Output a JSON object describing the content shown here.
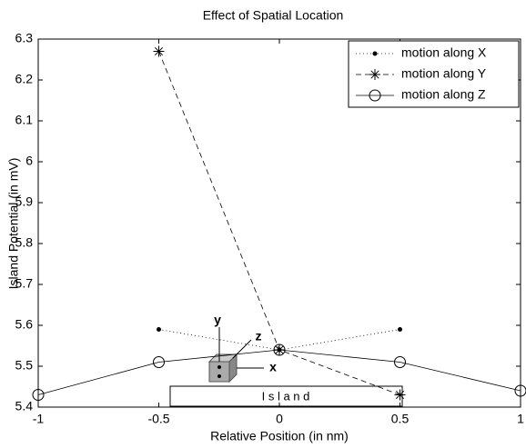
{
  "chart_data": {
    "type": "line",
    "title": "Effect of Spatial Location",
    "x_label": "Relative Position (in nm)",
    "y_label": "Island Potential (in mV)",
    "xlim": [
      -1,
      1
    ],
    "xticks": [
      -1,
      -0.5,
      0,
      0.5,
      1
    ],
    "ylim": [
      5.4,
      6.3
    ],
    "yticks": [
      5.4,
      5.5,
      5.6,
      5.7,
      5.8,
      5.9,
      6,
      6.1,
      6.2,
      6.3
    ],
    "legend": "upper right",
    "series": [
      {
        "name": "motion along X",
        "color": "#000000",
        "linestyle": "dotted",
        "marker": "dot",
        "x": [
          -0.5,
          0,
          0.5
        ],
        "values": [
          5.59,
          5.54,
          5.59
        ]
      },
      {
        "name": "motion along Y",
        "color": "#000000",
        "linestyle": "dashed",
        "marker": "star",
        "x": [
          -0.5,
          0,
          0.5
        ],
        "values": [
          6.27,
          5.54,
          5.43
        ]
      },
      {
        "name": "motion along Z",
        "color": "#000000",
        "linestyle": "solid",
        "marker": "circle",
        "x": [
          -1,
          -0.5,
          0,
          0.5,
          1
        ],
        "values": [
          5.43,
          5.51,
          5.54,
          5.51,
          5.44
        ]
      }
    ],
    "annotations": {
      "island": "I s l a n d",
      "axis_x": "x",
      "axis_y": "y",
      "axis_z": "z"
    }
  }
}
